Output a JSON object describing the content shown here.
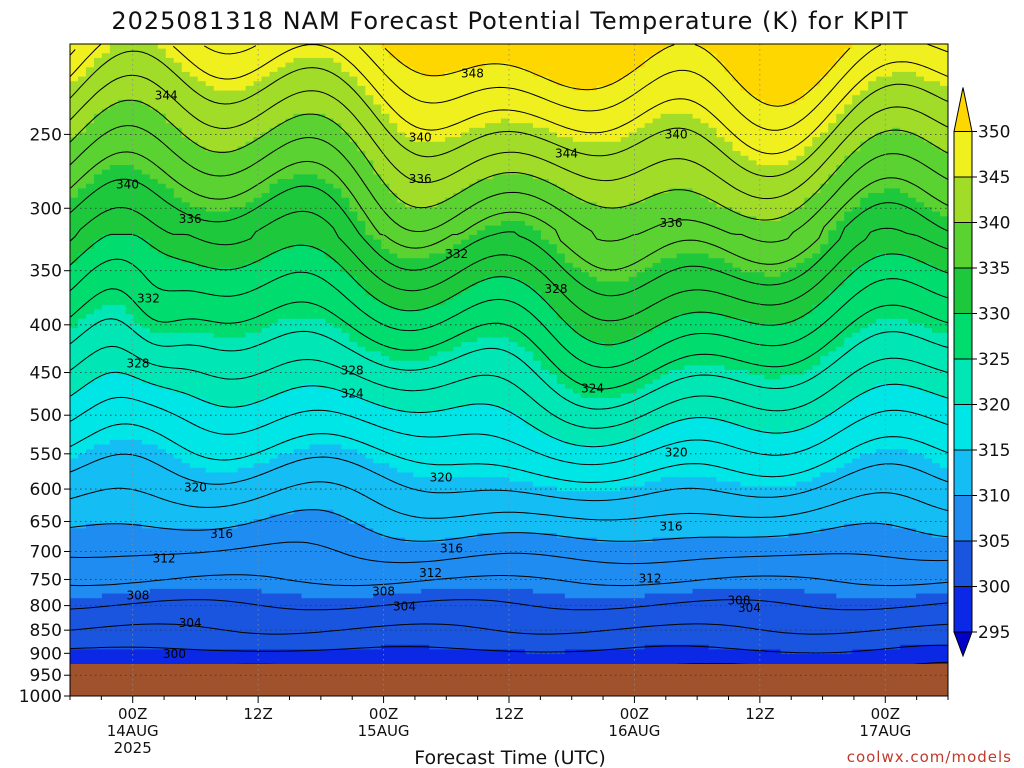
{
  "chart_data": {
    "type": "heatmap",
    "title": "2025081318 NAM Forecast Potential Temperature (K) for KPIT",
    "xlabel": "Forecast Time (UTC)",
    "ylabel": "",
    "x_ticks": [
      {
        "hour": 6,
        "lines": [
          "00Z",
          "14AUG",
          "2025"
        ]
      },
      {
        "hour": 18,
        "lines": [
          "12Z",
          "",
          ""
        ]
      },
      {
        "hour": 30,
        "lines": [
          "00Z",
          "15AUG",
          ""
        ]
      },
      {
        "hour": 42,
        "lines": [
          "12Z",
          "",
          ""
        ]
      },
      {
        "hour": 54,
        "lines": [
          "00Z",
          "16AUG",
          ""
        ]
      },
      {
        "hour": 66,
        "lines": [
          "12Z",
          "",
          ""
        ]
      },
      {
        "hour": 78,
        "lines": [
          "00Z",
          "17AUG",
          ""
        ]
      }
    ],
    "xlim": [
      0,
      84
    ],
    "y_ticks": [
      250,
      300,
      350,
      400,
      450,
      500,
      550,
      600,
      650,
      700,
      750,
      800,
      850,
      900,
      950,
      1000
    ],
    "ylim": [
      1000,
      200
    ],
    "y_scale": "log",
    "colorbar": {
      "levels": [
        295,
        300,
        305,
        310,
        315,
        320,
        325,
        330,
        335,
        340,
        345,
        350
      ],
      "colors": [
        "#0000c8",
        "#0a28e6",
        "#1a55e0",
        "#1e8cf0",
        "#14bef5",
        "#00e6e6",
        "#00e6b4",
        "#00dc6e",
        "#1ec83c",
        "#5ad232",
        "#a0dc28",
        "#f0f01e",
        "#ffd700"
      ]
    },
    "contour_labels": [
      {
        "x": 9.2,
        "p": 227,
        "text": "344"
      },
      {
        "x": 5.5,
        "p": 283,
        "text": "340"
      },
      {
        "x": 11.5,
        "p": 308,
        "text": "336"
      },
      {
        "x": 7.5,
        "p": 375,
        "text": "332"
      },
      {
        "x": 6.5,
        "p": 440,
        "text": "328"
      },
      {
        "x": 12.0,
        "p": 598,
        "text": "320"
      },
      {
        "x": 14.5,
        "p": 670,
        "text": "316"
      },
      {
        "x": 9.0,
        "p": 712,
        "text": "312"
      },
      {
        "x": 6.5,
        "p": 780,
        "text": "308"
      },
      {
        "x": 11.5,
        "p": 835,
        "text": "304"
      },
      {
        "x": 10.0,
        "p": 902,
        "text": "300"
      },
      {
        "x": 27.0,
        "p": 448,
        "text": "328"
      },
      {
        "x": 27.0,
        "p": 474,
        "text": "324"
      },
      {
        "x": 30.0,
        "p": 773,
        "text": "308"
      },
      {
        "x": 32.0,
        "p": 802,
        "text": "304"
      },
      {
        "x": 33.5,
        "p": 252,
        "text": "340"
      },
      {
        "x": 33.5,
        "p": 279,
        "text": "336"
      },
      {
        "x": 37.0,
        "p": 336,
        "text": "332"
      },
      {
        "x": 35.5,
        "p": 583,
        "text": "320"
      },
      {
        "x": 36.5,
        "p": 695,
        "text": "316"
      },
      {
        "x": 34.5,
        "p": 738,
        "text": "312"
      },
      {
        "x": 38.5,
        "p": 215,
        "text": "348"
      },
      {
        "x": 47.5,
        "p": 262,
        "text": "344"
      },
      {
        "x": 46.5,
        "p": 366,
        "text": "328"
      },
      {
        "x": 50.0,
        "p": 468,
        "text": "324"
      },
      {
        "x": 64.0,
        "p": 790,
        "text": "308"
      },
      {
        "x": 65.0,
        "p": 805,
        "text": "304"
      },
      {
        "x": 58.0,
        "p": 250,
        "text": "340"
      },
      {
        "x": 57.5,
        "p": 311,
        "text": "336"
      },
      {
        "x": 58.0,
        "p": 548,
        "text": "320"
      },
      {
        "x": 57.5,
        "p": 658,
        "text": "316"
      },
      {
        "x": 55.5,
        "p": 748,
        "text": "312"
      }
    ]
  },
  "credit": "coolwx.com/models"
}
